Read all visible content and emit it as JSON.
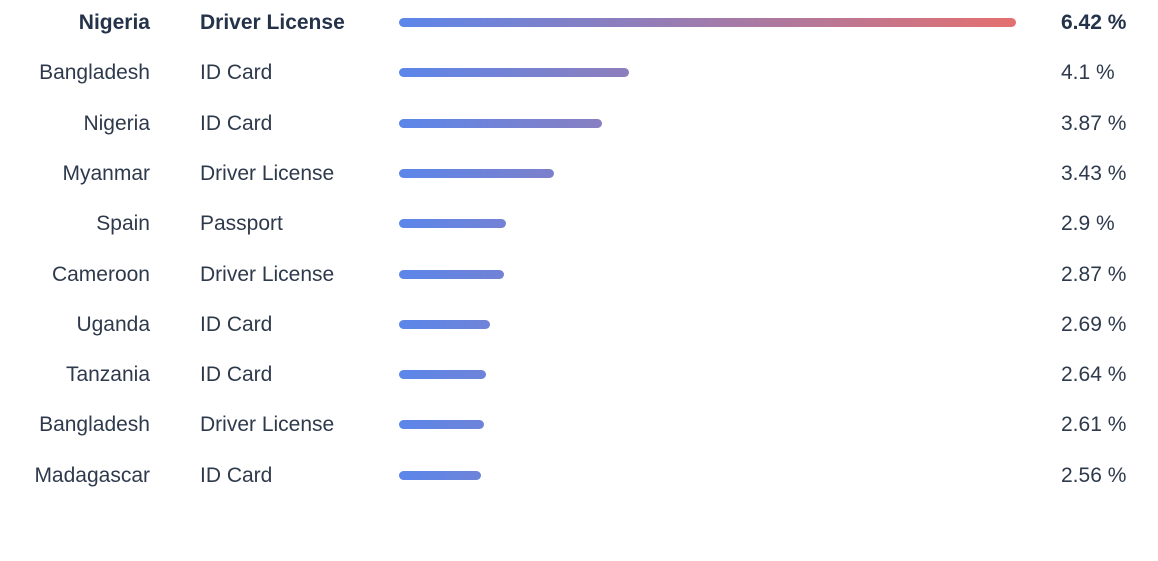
{
  "colors": {
    "bar_start": "#5b86ea",
    "bar_end": "#e4706f",
    "text": "#2e3a4c"
  },
  "chart_data": {
    "type": "bar",
    "orientation": "horizontal",
    "unit_suffix": " %",
    "xlim": [
      0,
      6.42
    ],
    "rows": [
      {
        "country": "Nigeria",
        "document": "Driver License",
        "value": 6.42,
        "label": "6.42 %"
      },
      {
        "country": "Bangladesh",
        "document": "ID Card",
        "value": 4.1,
        "label": "4.1 %"
      },
      {
        "country": "Nigeria",
        "document": "ID Card",
        "value": 3.87,
        "label": "3.87 %"
      },
      {
        "country": "Myanmar",
        "document": "Driver License",
        "value": 3.43,
        "label": "3.43 %"
      },
      {
        "country": "Spain",
        "document": "Passport",
        "value": 2.9,
        "label": "2.9 %"
      },
      {
        "country": "Cameroon",
        "document": "Driver License",
        "value": 2.87,
        "label": "2.87 %"
      },
      {
        "country": "Uganda",
        "document": "ID Card",
        "value": 2.69,
        "label": "2.69 %"
      },
      {
        "country": "Tanzania",
        "document": "ID Card",
        "value": 2.64,
        "label": "2.64 %"
      },
      {
        "country": "Bangladesh",
        "document": "Driver License",
        "value": 2.61,
        "label": "2.61 %"
      },
      {
        "country": "Madagascar",
        "document": "ID Card",
        "value": 2.56,
        "label": "2.56 %"
      }
    ]
  }
}
